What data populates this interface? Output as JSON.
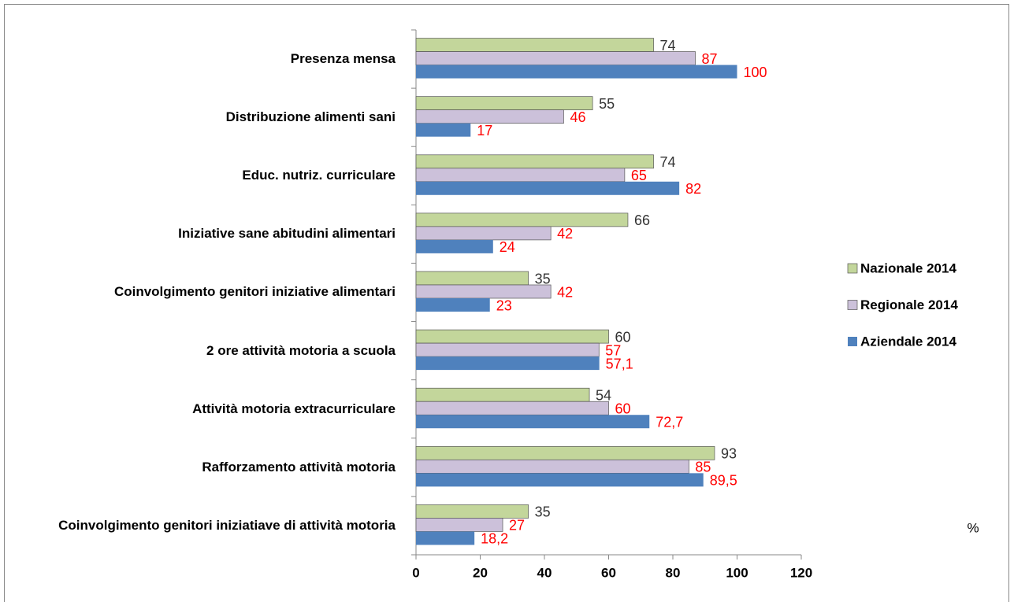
{
  "chart_data": {
    "type": "hbar",
    "categories": [
      "Presenza mensa",
      "Distribuzione alimenti sani",
      "Educ. nutriz. curriculare",
      "Iniziative sane abitudini alimentari",
      "Coinvolgimento genitori iniziative alimentari",
      "2 ore attività motoria a scuola",
      "Attività motoria extracurriculare",
      "Rafforzamento attività motoria",
      "Coinvolgimento genitori iniziatiave di attività motoria"
    ],
    "series": [
      {
        "name": "Nazionale 2014",
        "color": "#c3d69b",
        "label_color": "#333333",
        "values": [
          74,
          55,
          74,
          66,
          35,
          60,
          54,
          93,
          35
        ]
      },
      {
        "name": "Regionale 2014",
        "color": "#ccc1da",
        "label_color": "#ff0000",
        "values": [
          87,
          46,
          65,
          42,
          42,
          57,
          60,
          85,
          27
        ]
      },
      {
        "name": "Aziendale 2014",
        "color": "#4f81bd",
        "label_color": "#ff0000",
        "values": [
          100,
          17,
          82,
          24,
          23,
          57.1,
          72.7,
          89.5,
          18.2
        ],
        "value_labels": [
          "100",
          "17",
          "82",
          "24",
          "23",
          "57,1",
          "72,7",
          "89,5",
          "18,2"
        ]
      }
    ],
    "x_label": "%",
    "xlim": [
      0,
      120
    ],
    "xticks": [
      0,
      20,
      40,
      60,
      80,
      100,
      120
    ],
    "legend": "right"
  }
}
